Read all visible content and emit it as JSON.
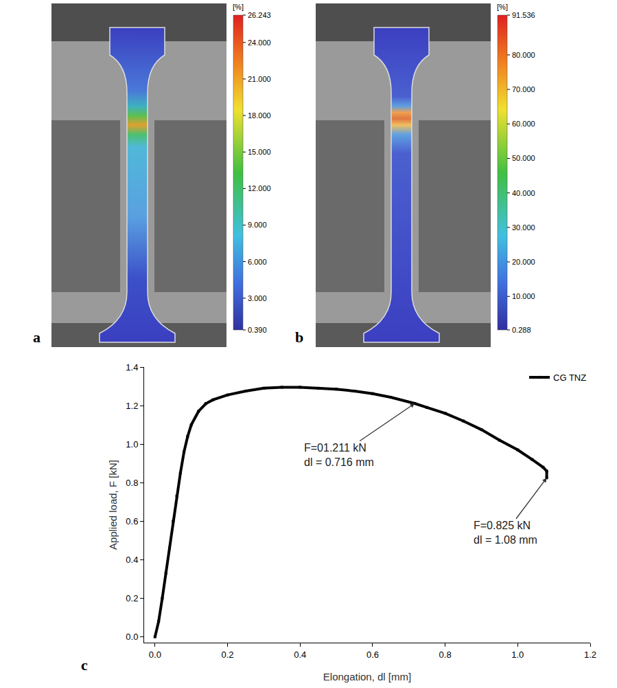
{
  "strain_maps": [
    {
      "label": "a",
      "colorbar_title": "[%]",
      "colorbar_range": [
        0.39,
        26.243
      ],
      "colorbar_ticks": [
        26.243,
        {
          "value": 24,
          "label": "24.000"
        },
        {
          "value": 21,
          "label": "21.000"
        },
        {
          "value": 18,
          "label": "18.000"
        },
        {
          "value": 15,
          "label": "15.000"
        },
        {
          "value": 12,
          "label": "12.000"
        },
        {
          "value": 9,
          "label": "9.000"
        },
        {
          "value": 6,
          "label": "6.000"
        },
        {
          "value": 3,
          "label": "3.000"
        },
        {
          "value": 0.39,
          "label": "0.390"
        }
      ]
    },
    {
      "label": "b",
      "colorbar_title": "[%]",
      "colorbar_range": [
        0.288,
        91.536
      ],
      "colorbar_ticks": [
        91.536,
        {
          "value": 80,
          "label": "80.000"
        },
        {
          "value": 70,
          "label": "70.000"
        },
        {
          "value": 60,
          "label": "60.000"
        },
        {
          "value": 50,
          "label": "50.000"
        },
        {
          "value": 40,
          "label": "40.000"
        },
        {
          "value": 30,
          "label": "30.000"
        },
        {
          "value": 20,
          "label": "20.000"
        },
        {
          "value": 10,
          "label": "10.000"
        },
        0.288
      ]
    }
  ],
  "chart_data": {
    "type": "line",
    "label": "c",
    "xlabel": "Elongation, dl [mm]",
    "ylabel": "Applied load, F [kN]",
    "x": [
      0,
      0.01,
      0.02,
      0.03,
      0.04,
      0.05,
      0.06,
      0.07,
      0.08,
      0.09,
      0.1,
      0.12,
      0.14,
      0.16,
      0.2,
      0.25,
      0.3,
      0.35,
      0.4,
      0.45,
      0.5,
      0.55,
      0.6,
      0.65,
      0.716,
      0.75,
      0.8,
      0.85,
      0.9,
      0.95,
      1.0,
      1.04,
      1.07,
      1.08,
      1.08
    ],
    "series": [
      {
        "name": "CG TNZ",
        "color": "#000000",
        "marker": "square",
        "line_style": "solid",
        "values": [
          0,
          0.08,
          0.2,
          0.33,
          0.46,
          0.6,
          0.73,
          0.85,
          0.96,
          1.04,
          1.1,
          1.17,
          1.21,
          1.23,
          1.255,
          1.275,
          1.29,
          1.295,
          1.295,
          1.29,
          1.285,
          1.275,
          1.262,
          1.243,
          1.211,
          1.19,
          1.16,
          1.12,
          1.075,
          1.02,
          0.97,
          0.92,
          0.88,
          0.86,
          0.825
        ]
      }
    ],
    "xlim": [
      -0.03,
      1.2
    ],
    "xticks": [
      {
        "value": 0,
        "label": "0.0"
      },
      0.2,
      0.4,
      0.6,
      0.8,
      {
        "value": 1,
        "label": "1.0"
      },
      1.2
    ],
    "ylim": [
      -0.03,
      1.4
    ],
    "yticks": [
      {
        "value": 0,
        "label": "0.0"
      },
      0.2,
      0.4,
      0.6,
      0.8,
      {
        "value": 1,
        "label": "1.0"
      },
      1.2,
      1.4
    ],
    "annotations": [
      {
        "text": [
          "F=01.211 kN",
          "dl = 0.716 mm"
        ],
        "x": 0.716,
        "y": 1.211
      },
      {
        "text": [
          "F=0.825 kN",
          "dl = 1.08 mm"
        ],
        "x": 1.08,
        "y": 0.825
      }
    ],
    "legend": "upper right",
    "grid": false
  }
}
